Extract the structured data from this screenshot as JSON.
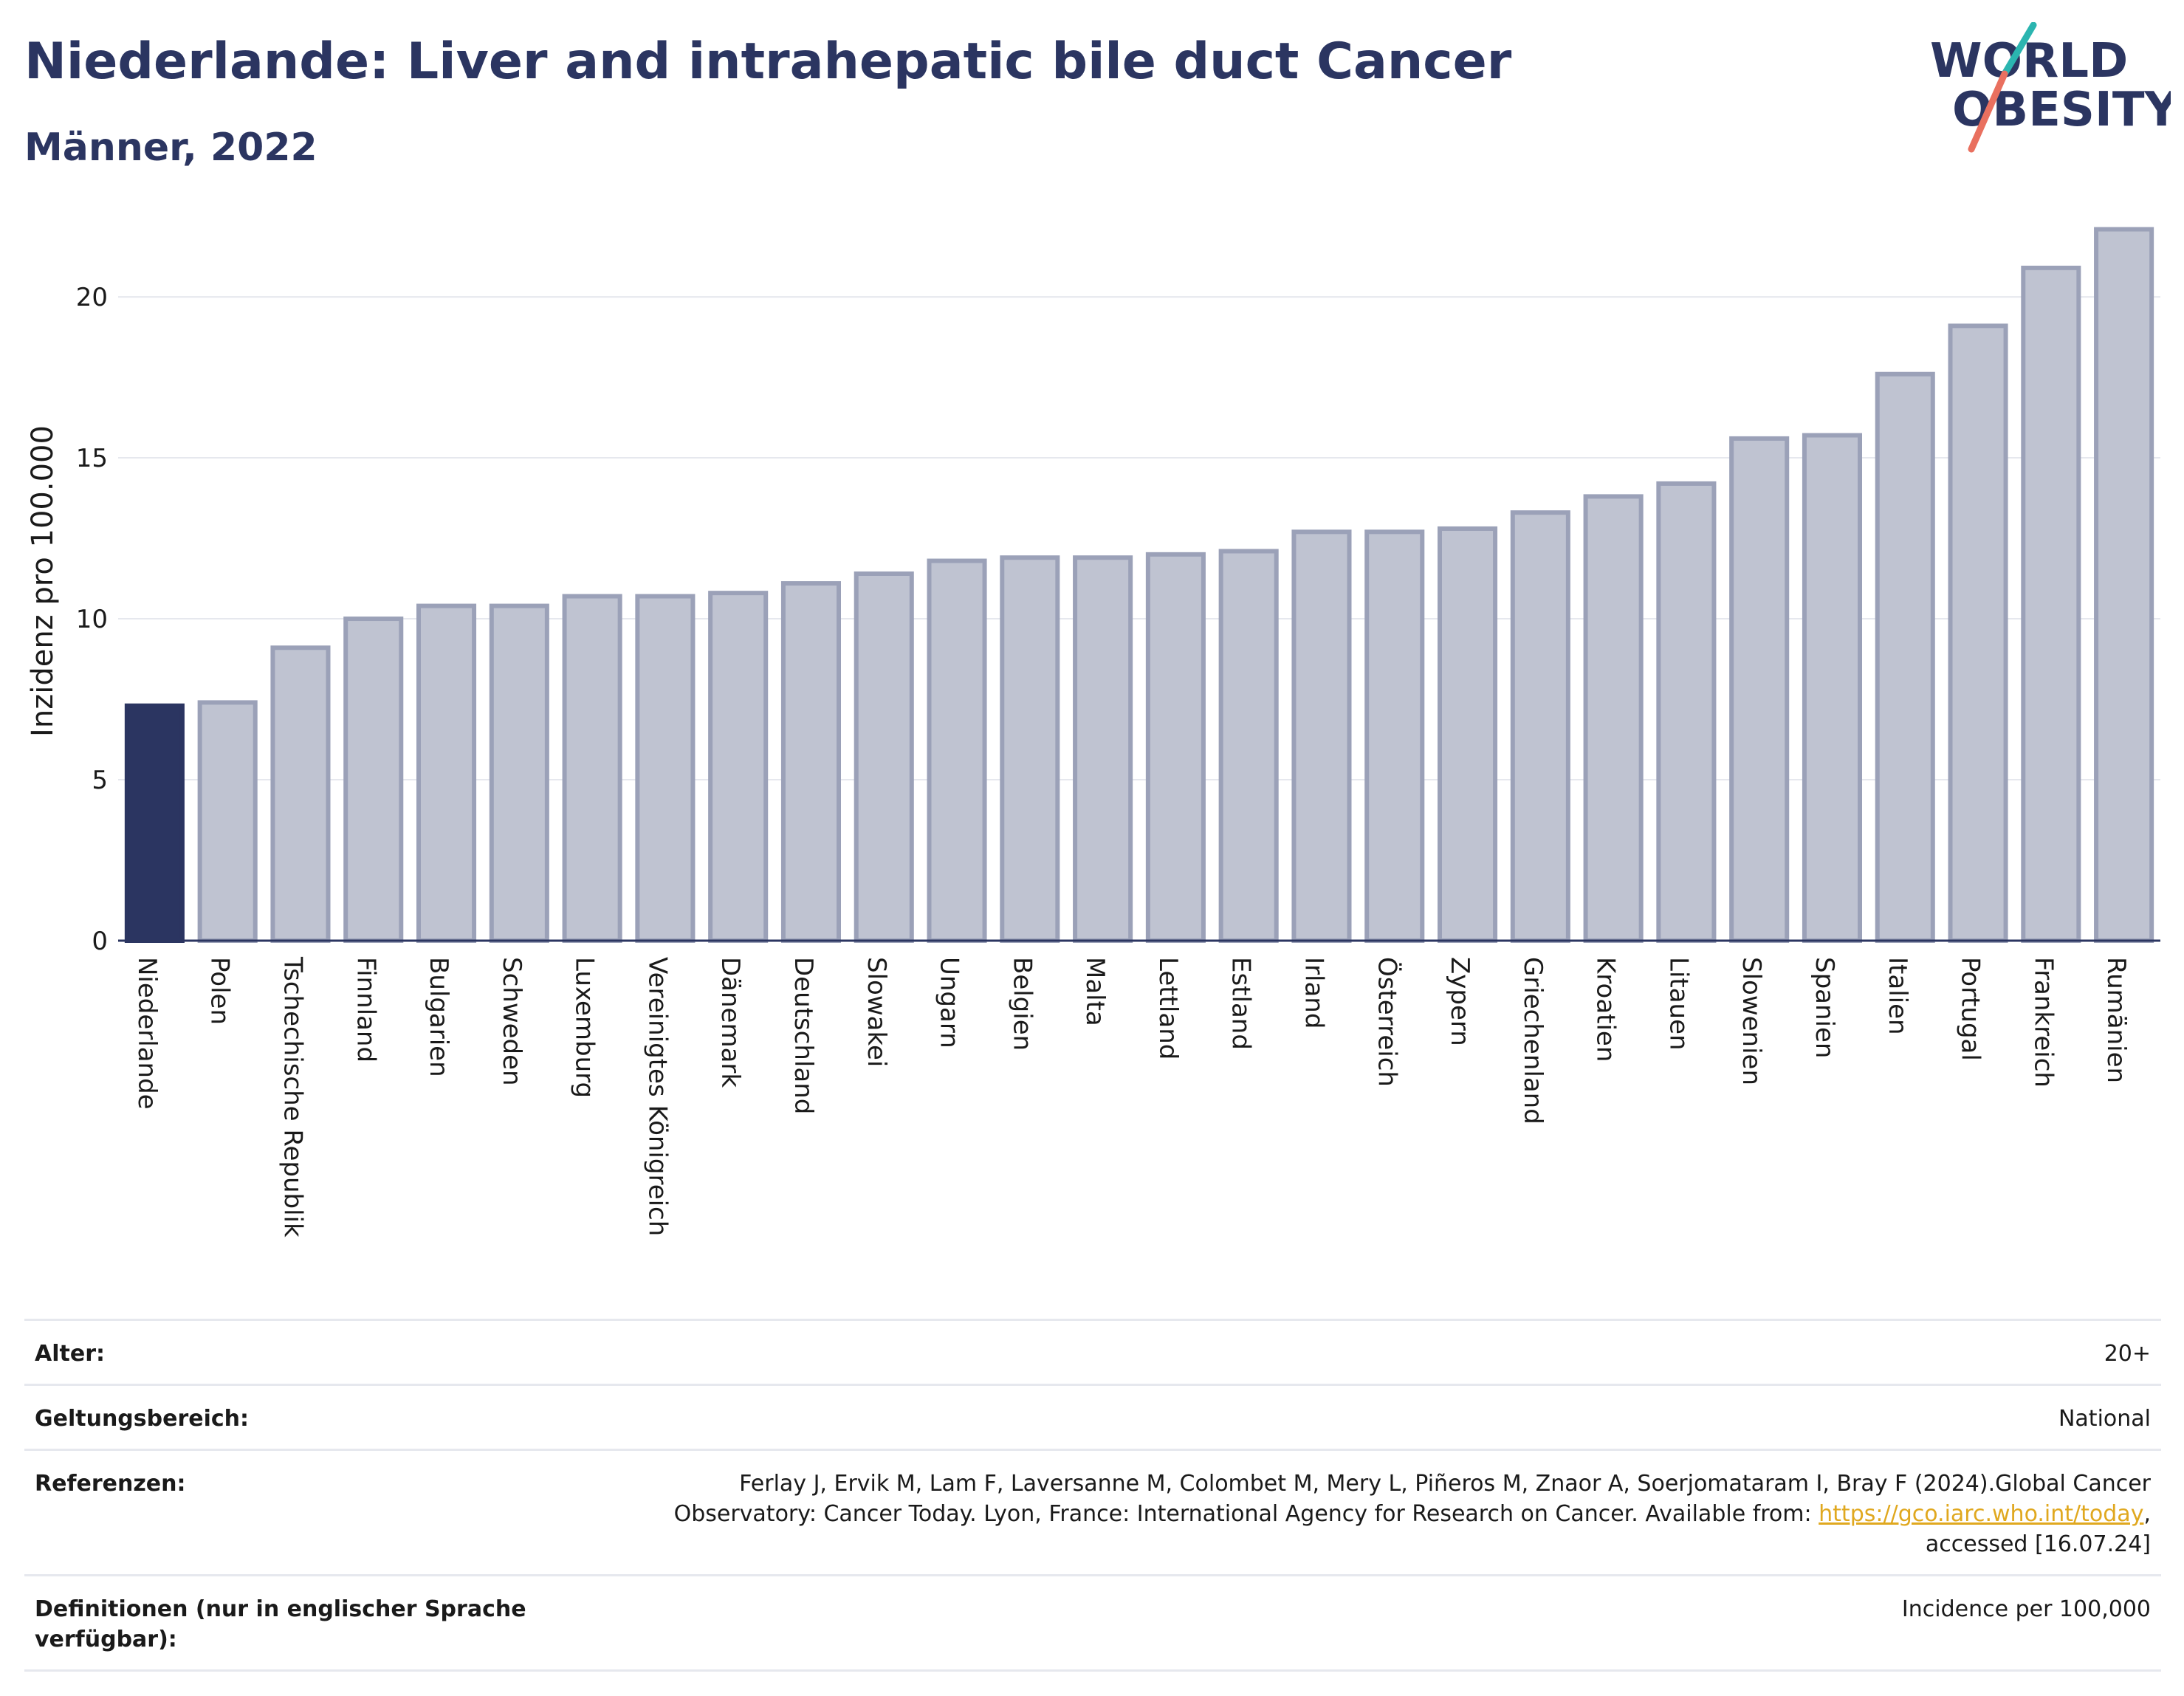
{
  "header": {
    "title": "Niederlande: Liver and intrahepatic bile duct Cancer",
    "subtitle": "Männer, 2022"
  },
  "logo": {
    "line1": "WORLD",
    "line2": "OBESITY",
    "colors": {
      "text": "#2b3561",
      "slash_top": "#2bb5b0",
      "slash_bottom": "#e9705f"
    }
  },
  "colors": {
    "highlight": "#2b3561",
    "bar_fill": "#bfc3d1",
    "bar_stroke": "#9ba1b8",
    "grid": "#e6e8ee",
    "link": "#e0a81f"
  },
  "chart_data": {
    "type": "bar",
    "title": "Niederlande: Liver and intrahepatic bile duct Cancer",
    "subtitle": "Männer, 2022",
    "xlabel": "",
    "ylabel": "Inzidenz pro 100.000",
    "ylim": [
      0,
      22.8
    ],
    "yticks": [
      0,
      5,
      10,
      15,
      20
    ],
    "grid": true,
    "highlight": "Niederlande",
    "categories": [
      "Niederlande",
      "Polen",
      "Tschechische Republik",
      "Finnland",
      "Bulgarien",
      "Schweden",
      "Luxemburg",
      "Vereinigtes Königreich",
      "Dänemark",
      "Deutschland",
      "Slowakei",
      "Ungarn",
      "Belgien",
      "Malta",
      "Lettland",
      "Estland",
      "Irland",
      "Österreich",
      "Zypern",
      "Griechenland",
      "Kroatien",
      "Litauen",
      "Slowenien",
      "Spanien",
      "Italien",
      "Portugal",
      "Frankreich",
      "Rumänien"
    ],
    "values": [
      7.3,
      7.4,
      9.1,
      10.0,
      10.4,
      10.4,
      10.7,
      10.7,
      10.8,
      11.1,
      11.4,
      11.8,
      11.9,
      11.9,
      12.0,
      12.1,
      12.7,
      12.7,
      12.8,
      13.3,
      13.8,
      14.2,
      15.6,
      15.7,
      17.6,
      19.1,
      20.9,
      22.1
    ]
  },
  "info": {
    "rows": [
      {
        "label": "Alter:",
        "value": "20+"
      },
      {
        "label": "Geltungsbereich:",
        "value": "National"
      },
      {
        "label": "Referenzen:",
        "value_line1": "Ferlay J, Ervik M, Lam F, Laversanne M, Colombet M, Mery L, Piñeros M, Znaor A, Soerjomataram I, Bray F (2024).Global Cancer",
        "value_line2_pre": "Observatory: Cancer Today. Lyon, France: International Agency for Research on Cancer. Available from: ",
        "value_link": "https://gco.iarc.who.int/today",
        "value_line2_post": ",",
        "value_line3": "accessed [16.07.24]"
      },
      {
        "label": "Definitionen (nur in englischer Sprache verfügbar):",
        "value": "Incidence per 100,000"
      }
    ]
  }
}
